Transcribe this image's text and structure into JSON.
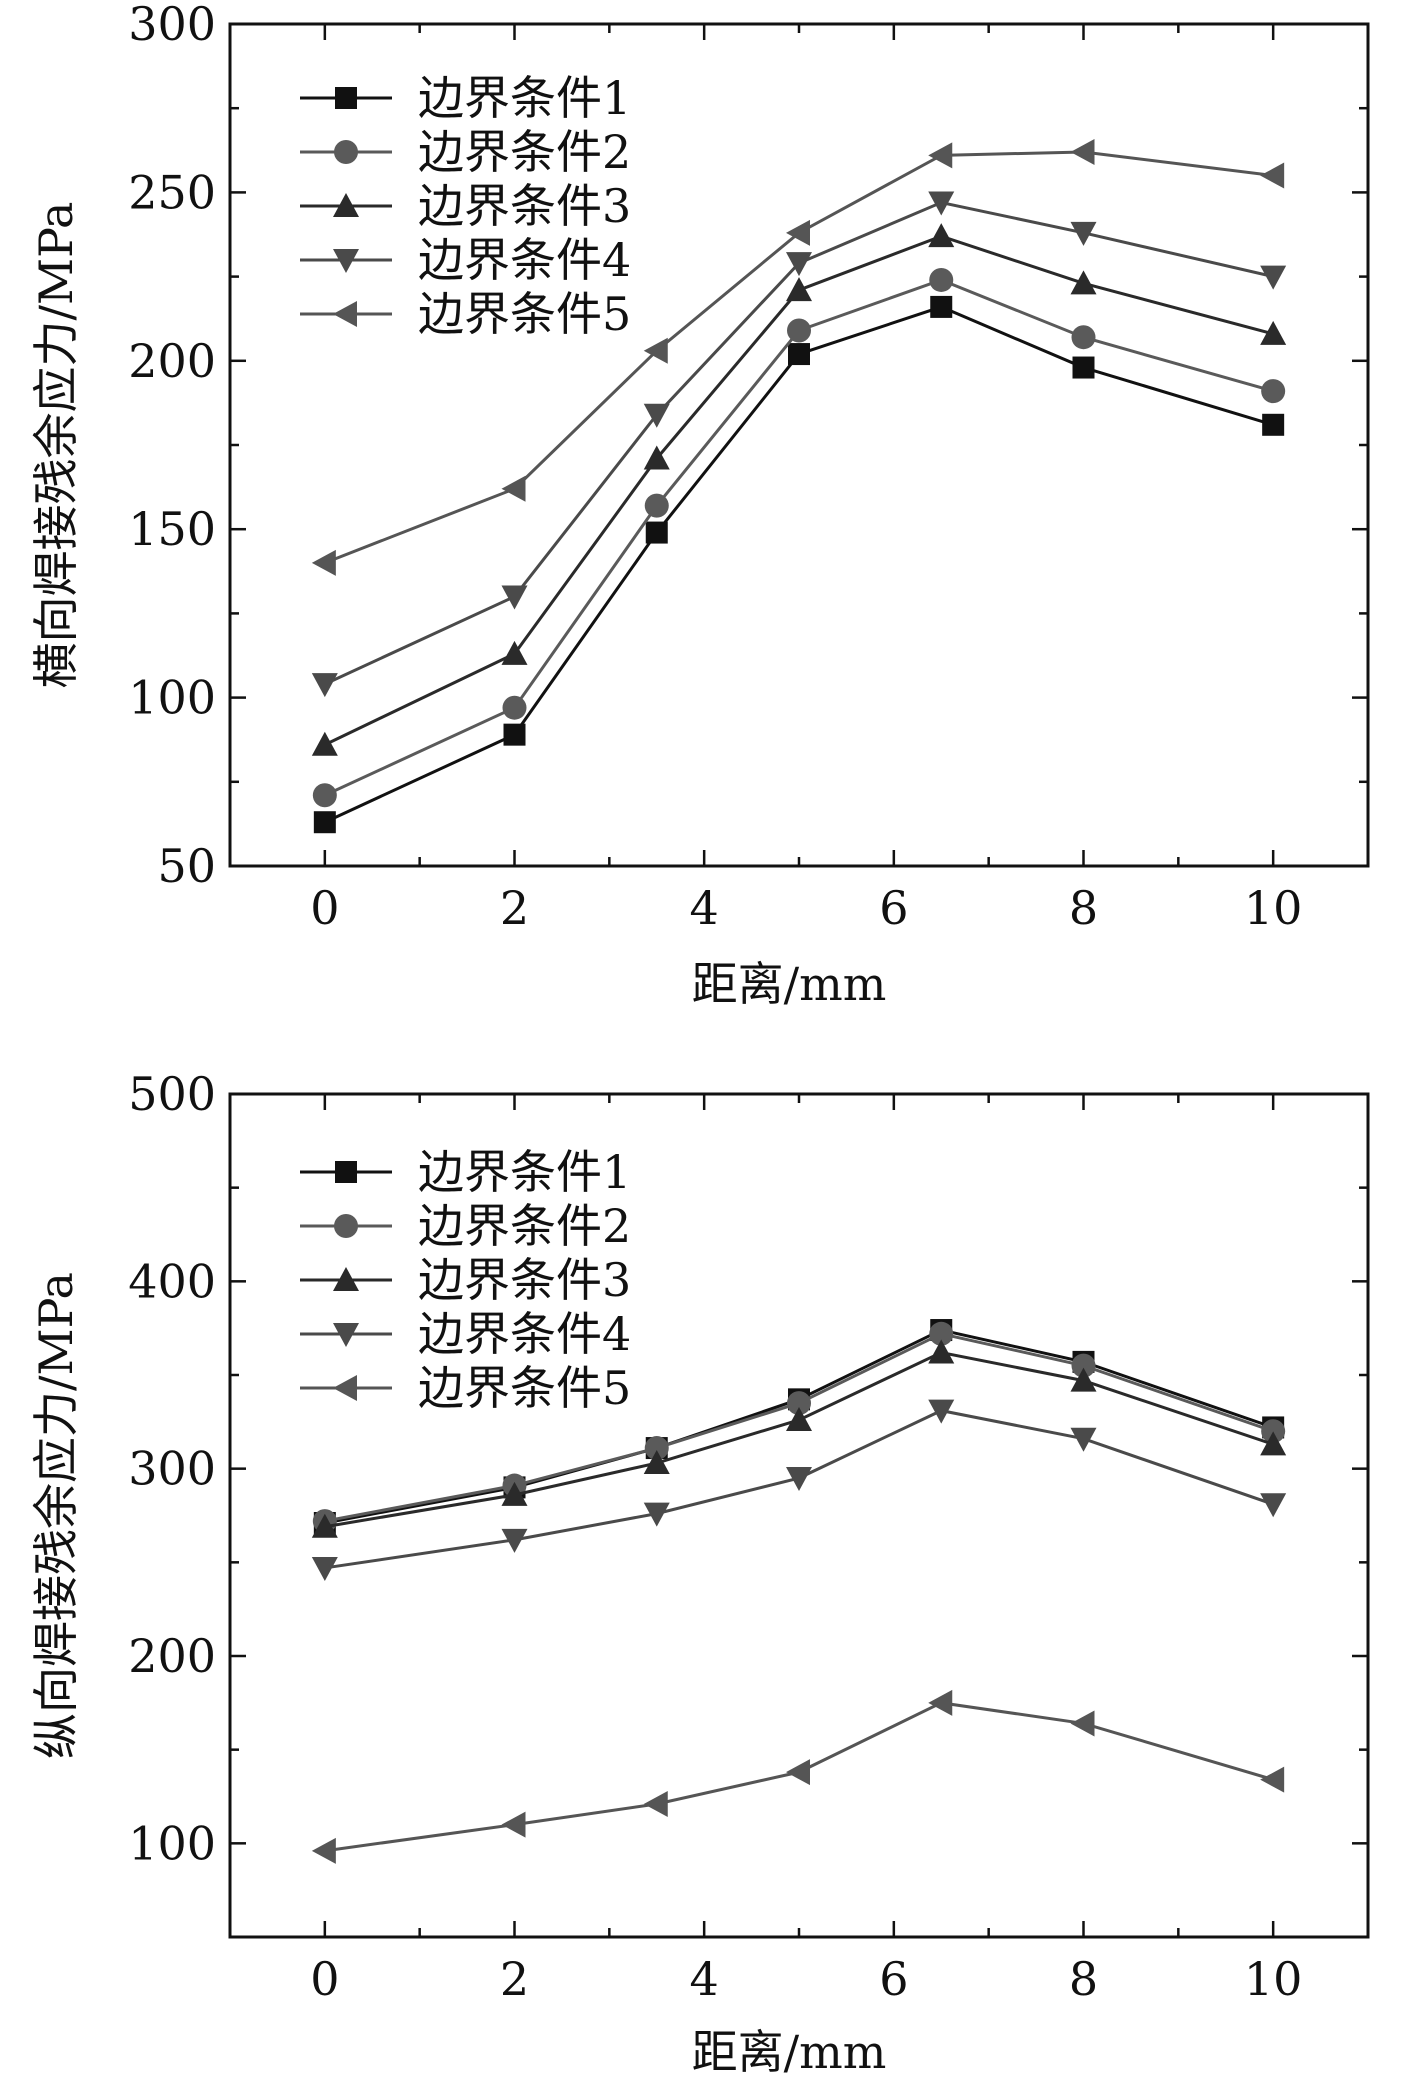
{
  "chart_data": [
    {
      "type": "line",
      "title": "",
      "xlabel": "距离/mm",
      "ylabel": "横向焊接残余应力/MPa",
      "xlim": [
        -1,
        11
      ],
      "ylim": [
        50,
        300
      ],
      "xticks": [
        0,
        2,
        4,
        6,
        8,
        10
      ],
      "yticks": [
        50,
        100,
        150,
        200,
        250,
        300
      ],
      "x": [
        0,
        2,
        3.5,
        5,
        6.5,
        8,
        10
      ],
      "legend_position": "top-left",
      "series": [
        {
          "name": "边界条件1",
          "marker": "square",
          "color": "#111111",
          "values": [
            63,
            89,
            149,
            202,
            216,
            198,
            181
          ]
        },
        {
          "name": "边界条件2",
          "marker": "circle",
          "color": "#5a5a5a",
          "values": [
            71,
            97,
            157,
            209,
            224,
            207,
            191
          ]
        },
        {
          "name": "边界条件3",
          "marker": "triangle-up",
          "color": "#2a2a2a",
          "values": [
            86,
            113,
            171,
            221,
            237,
            223,
            208
          ]
        },
        {
          "name": "边界条件4",
          "marker": "triangle-down",
          "color": "#4a4a4a",
          "values": [
            104,
            130,
            184,
            229,
            247,
            238,
            225
          ]
        },
        {
          "name": "边界条件5",
          "marker": "triangle-left",
          "color": "#555555",
          "values": [
            140,
            162,
            203,
            238,
            261,
            262,
            255
          ]
        }
      ]
    },
    {
      "type": "line",
      "title": "",
      "xlabel": "距离/mm",
      "ylabel": "纵向焊接残余应力/MPa",
      "xlim": [
        -1,
        11
      ],
      "ylim": [
        50,
        500
      ],
      "xticks": [
        0,
        2,
        4,
        6,
        8,
        10
      ],
      "yticks": [
        100,
        200,
        300,
        400,
        500
      ],
      "x": [
        0,
        2,
        3.5,
        5,
        6.5,
        8,
        10
      ],
      "legend_position": "top-left",
      "series": [
        {
          "name": "边界条件1",
          "marker": "square",
          "color": "#111111",
          "values": [
            271,
            290,
            311,
            337,
            374,
            357,
            322
          ]
        },
        {
          "name": "边界条件2",
          "marker": "circle",
          "color": "#5a5a5a",
          "values": [
            272,
            291,
            311,
            335,
            372,
            355,
            320
          ]
        },
        {
          "name": "边界条件3",
          "marker": "triangle-up",
          "color": "#2a2a2a",
          "values": [
            269,
            286,
            303,
            326,
            362,
            347,
            313
          ]
        },
        {
          "name": "边界条件4",
          "marker": "triangle-down",
          "color": "#4a4a4a",
          "values": [
            247,
            262,
            276,
            295,
            331,
            316,
            281
          ]
        },
        {
          "name": "边界条件5",
          "marker": "triangle-left",
          "color": "#555555",
          "values": [
            96,
            110,
            121,
            138,
            175,
            164,
            134
          ]
        }
      ]
    }
  ]
}
